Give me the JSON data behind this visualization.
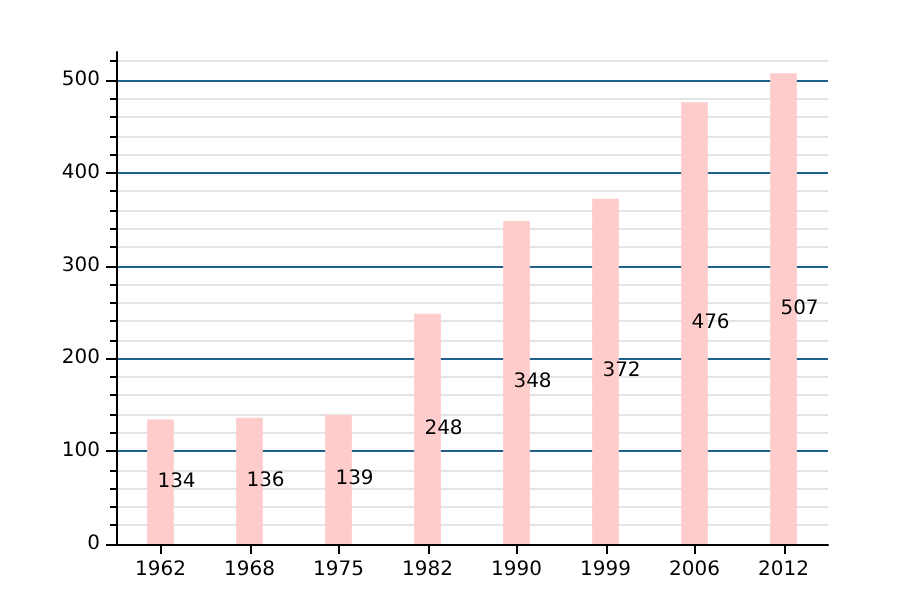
{
  "chart_data": {
    "type": "bar",
    "categories": [
      "1962",
      "1968",
      "1975",
      "1982",
      "1990",
      "1999",
      "2006",
      "2012"
    ],
    "values": [
      134,
      136,
      139,
      248,
      348,
      372,
      476,
      507
    ],
    "color": "#ffcccc",
    "data_labels": true,
    "ylim": [
      0,
      530
    ],
    "yticks": [
      0,
      100,
      200,
      300,
      400,
      500
    ],
    "grid": "y"
  }
}
